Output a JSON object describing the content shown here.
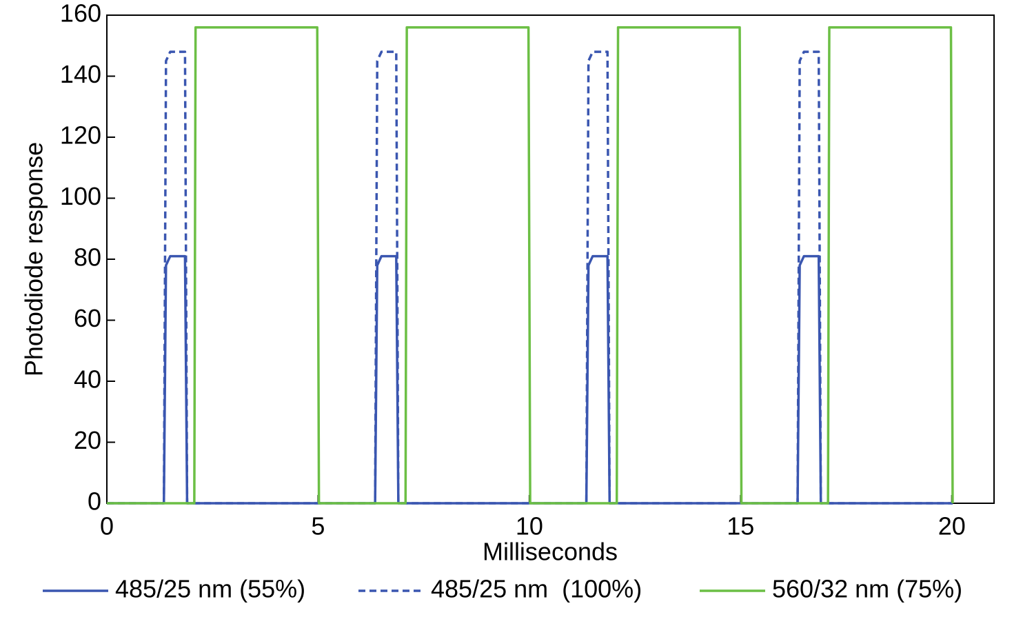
{
  "chart_data": {
    "type": "line",
    "x_label": "Milliseconds",
    "y_label": "Photodiode response",
    "x": [
      0,
      1.35,
      1.4,
      1.5,
      1.85,
      1.9,
      2.07,
      2.1,
      4.98,
      5.02,
      6.35,
      6.4,
      6.5,
      6.85,
      6.9,
      7.07,
      7.1,
      9.98,
      10.02,
      11.35,
      11.4,
      11.5,
      11.85,
      11.9,
      12.07,
      12.1,
      14.98,
      15.02,
      16.35,
      16.4,
      16.5,
      16.85,
      16.9,
      17.07,
      17.1,
      19.98,
      20.02
    ],
    "series": [
      {
        "name": "485/25 nm (55%)",
        "color": "#3a56b0",
        "line_style": "solid",
        "values": [
          0,
          0,
          78,
          81,
          81,
          0,
          0,
          0,
          0,
          0,
          0,
          78,
          81,
          81,
          0,
          0,
          0,
          0,
          0,
          0,
          78,
          81,
          81,
          0,
          0,
          0,
          0,
          0,
          0,
          78,
          81,
          81,
          0,
          0,
          0,
          0,
          0
        ]
      },
      {
        "name": "485/25 nm  (100%)",
        "color": "#3a56b0",
        "line_style": "dashed",
        "values": [
          0,
          0,
          145,
          148,
          148,
          0,
          0,
          0,
          0,
          0,
          0,
          145,
          148,
          148,
          0,
          0,
          0,
          0,
          0,
          0,
          145,
          148,
          148,
          0,
          0,
          0,
          0,
          0,
          0,
          145,
          148,
          148,
          0,
          0,
          0,
          0,
          0
        ]
      },
      {
        "name": "560/32 nm (75%)",
        "color": "#6cbf45",
        "line_style": "solid",
        "values": [
          0,
          0,
          0,
          0,
          0,
          0,
          0,
          156,
          156,
          0,
          0,
          0,
          0,
          0,
          0,
          0,
          156,
          156,
          0,
          0,
          0,
          0,
          0,
          0,
          0,
          156,
          156,
          0,
          0,
          0,
          0,
          0,
          0,
          0,
          156,
          156,
          0
        ]
      }
    ],
    "xlim": [
      0,
      21
    ],
    "xticks": [
      0,
      5,
      10,
      15,
      20
    ],
    "ylim": [
      0,
      160
    ],
    "yticks": [
      0,
      20,
      40,
      60,
      80,
      100,
      120,
      140,
      160
    ],
    "grid": false,
    "legend": "bottom"
  }
}
